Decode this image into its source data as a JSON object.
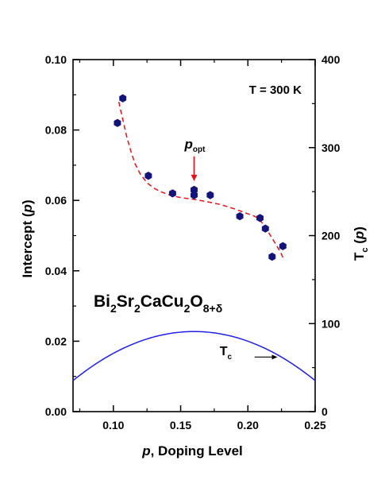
{
  "chart_data": {
    "type": "scatter",
    "annotation_temperature": "T = 300 K",
    "xlabel": {
      "italic": "p",
      "rest": ", Doping Level"
    },
    "ylabel_left": {
      "pre": "Intercept (",
      "italic": "p",
      "post": ")"
    },
    "ylabel_right": {
      "main": "T",
      "sub": "c",
      "pre": " (",
      "italic": "p",
      "post": ")"
    },
    "formula": [
      {
        "t": "Bi",
        "sub": false
      },
      {
        "t": "2",
        "sub": true
      },
      {
        "t": "Sr",
        "sub": false
      },
      {
        "t": "2",
        "sub": true
      },
      {
        "t": "CaCu",
        "sub": false
      },
      {
        "t": "2",
        "sub": true
      },
      {
        "t": "O",
        "sub": false
      },
      {
        "t": "8+δ",
        "sub": true
      }
    ],
    "popt_label": {
      "italic": "p",
      "sub": "opt"
    },
    "tc_label": {
      "main": "T",
      "sub": "c"
    },
    "xlim": [
      0.07,
      0.25
    ],
    "ylim_left": [
      0.0,
      0.1
    ],
    "ylim_right": [
      0,
      400
    ],
    "x_ticks": [
      "0.10",
      "0.15",
      "0.20",
      "0.25"
    ],
    "x_tick_values": [
      0.1,
      0.15,
      0.2,
      0.25
    ],
    "y_left_ticks": [
      "0.00",
      "0.02",
      "0.04",
      "0.06",
      "0.08",
      "0.10"
    ],
    "y_left_tick_values": [
      0.0,
      0.02,
      0.04,
      0.06,
      0.08,
      0.1
    ],
    "y_right_ticks": [
      "0",
      "100",
      "200",
      "300",
      "400"
    ],
    "y_right_tick_values": [
      0,
      100,
      200,
      300,
      400
    ],
    "series": [
      {
        "type": "scatter",
        "axis": "left",
        "x": [
          0.103,
          0.107,
          0.126,
          0.144,
          0.16,
          0.16,
          0.172,
          0.194,
          0.209,
          0.213,
          0.218,
          0.226
        ],
        "y": [
          0.082,
          0.089,
          0.067,
          0.062,
          0.063,
          0.0615,
          0.0615,
          0.0555,
          0.055,
          0.052,
          0.044,
          0.047
        ]
      },
      {
        "type": "line",
        "style": "dashed",
        "axis": "left",
        "x": [
          0.104,
          0.107,
          0.11,
          0.113,
          0.116,
          0.12,
          0.125,
          0.13,
          0.135,
          0.14,
          0.145,
          0.15,
          0.16,
          0.17,
          0.18,
          0.19,
          0.2,
          0.205,
          0.208,
          0.212,
          0.216,
          0.22,
          0.224,
          0.227
        ],
        "y": [
          0.088,
          0.083,
          0.078,
          0.074,
          0.0705,
          0.0675,
          0.065,
          0.0635,
          0.0625,
          0.0618,
          0.0612,
          0.0608,
          0.0603,
          0.0596,
          0.0588,
          0.0576,
          0.0562,
          0.0555,
          0.0548,
          0.053,
          0.0505,
          0.048,
          0.0455,
          0.043
        ]
      },
      {
        "type": "line",
        "style": "solid",
        "axis": "right",
        "curve": "parabola",
        "peak_x": 0.16,
        "peak_y": 91,
        "x": [
          0.07,
          0.25
        ]
      }
    ],
    "popt_arrow_x": 0.16,
    "popt_arrow_y_top": 0.0725,
    "popt_arrow_y_bottom": 0.0655,
    "tc_arrow_x": [
      0.205,
      0.222
    ],
    "tc_arrow_y_right": 62,
    "colors": {
      "marker": "#13137a",
      "fit": "#e3121a",
      "tc_curve": "#1f1fe6",
      "axes": "#000000"
    }
  }
}
